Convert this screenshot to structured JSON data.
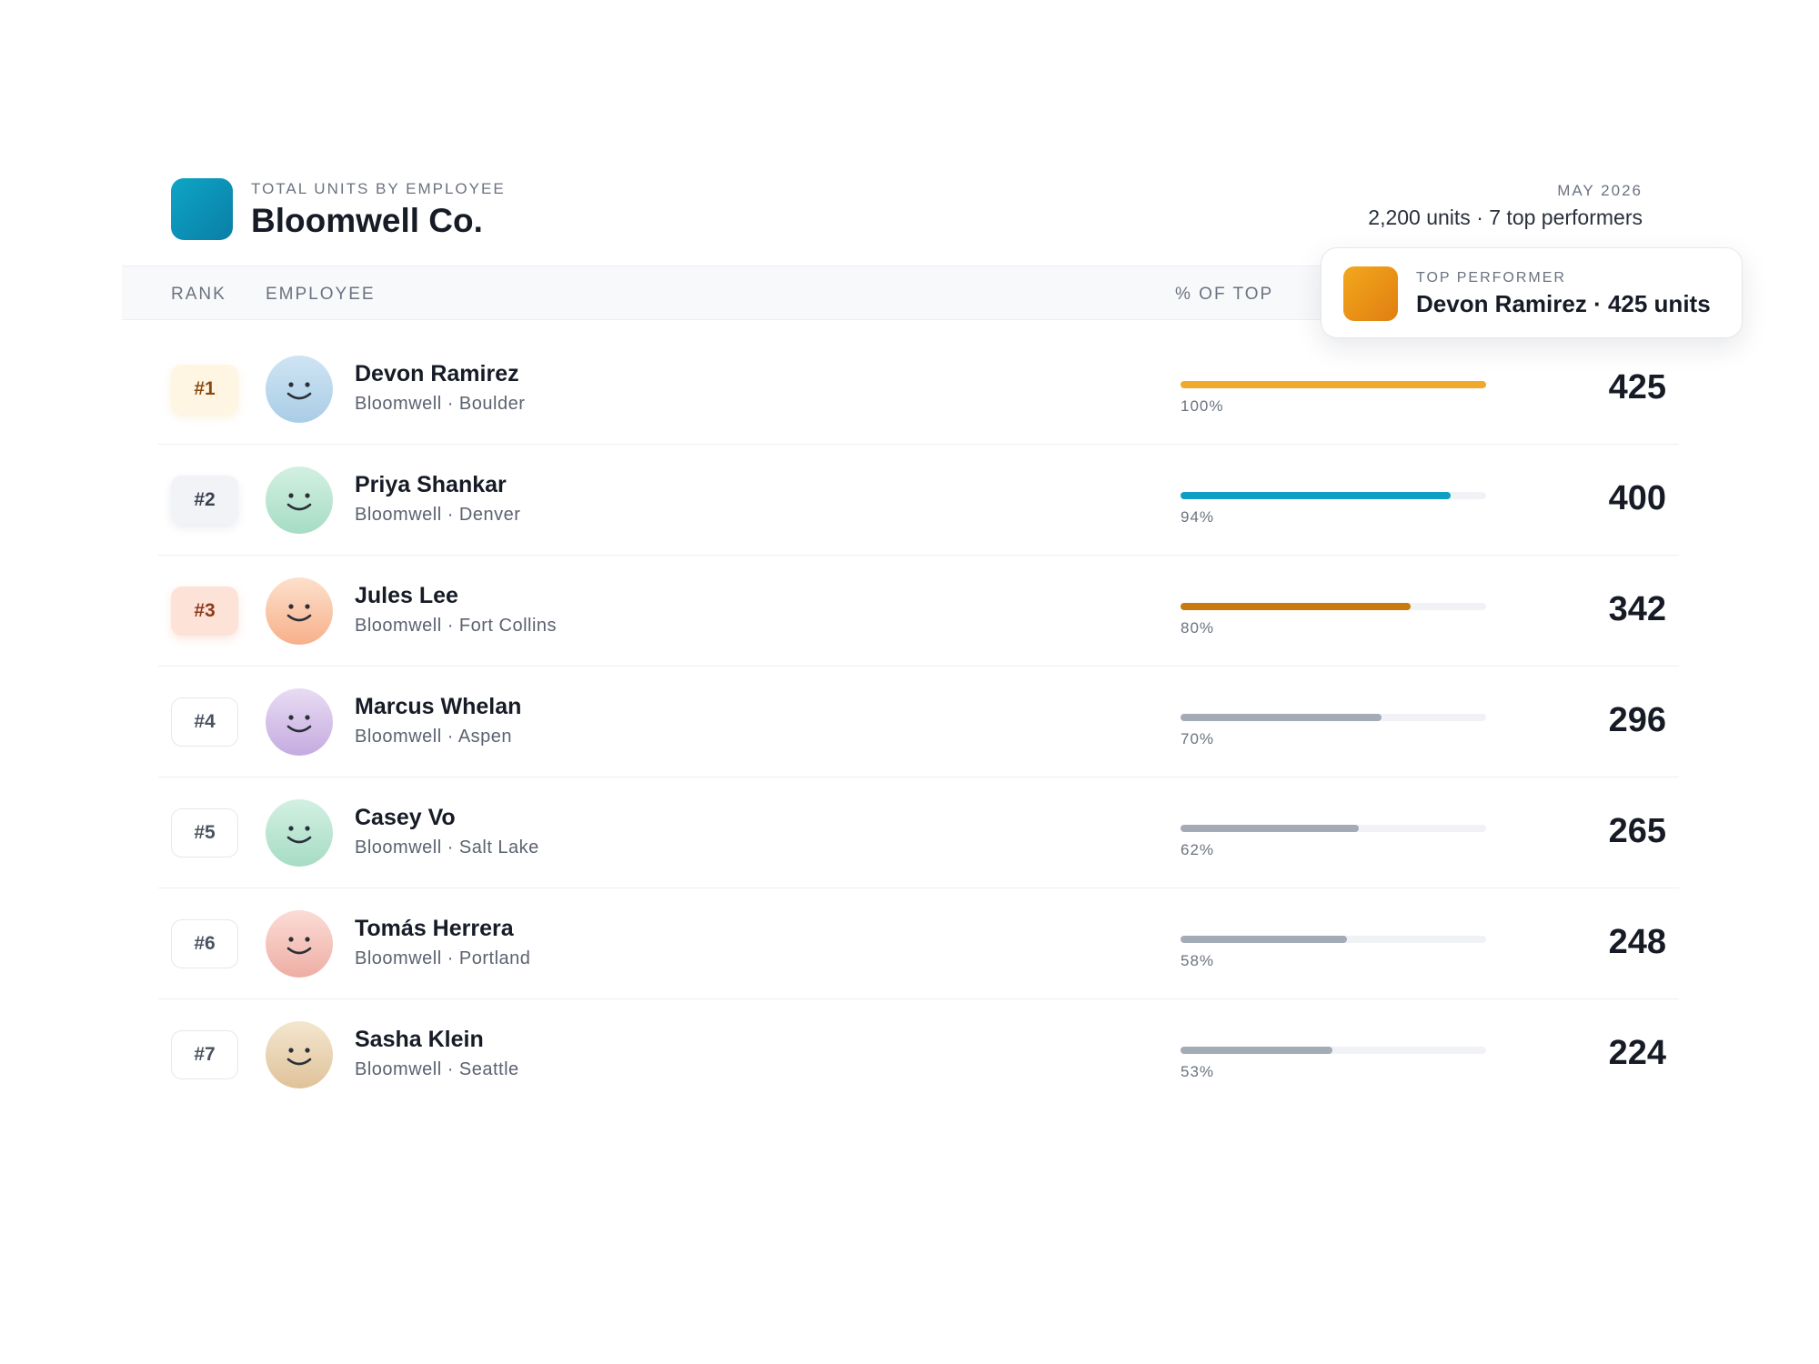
{
  "header": {
    "eyebrow": "TOTAL UNITS BY EMPLOYEE",
    "title": "Bloomwell Co.",
    "month": "MAY 2026",
    "summary": "2,200 units · 7 top performers"
  },
  "columns": {
    "rank": "RANK",
    "employee": "EMPLOYEE",
    "percent": "% OF TOP"
  },
  "tooltip": {
    "label": "TOP PERFORMER",
    "text": "Devon Ramirez · 425 units"
  },
  "colors": {
    "accent": "#0ea5c6",
    "gold": "#f0a92a",
    "teal": "#0f9fc4",
    "bronze": "#c97a0f",
    "neutral": "#a3abb7"
  },
  "rows": [
    {
      "rank": "#1",
      "name": "Devon Ramirez",
      "location": "Bloomwell · Boulder",
      "pct_label": "100%",
      "pct": 1.0,
      "units": "425",
      "bar_color": "#f0a92a",
      "badge": "gold",
      "avatar": [
        "#cfe4f3",
        "#a9cde6"
      ]
    },
    {
      "rank": "#2",
      "name": "Priya Shankar",
      "location": "Bloomwell · Denver",
      "pct_label": "94%",
      "pct": 0.94,
      "units": "400",
      "bar_color": "#0f9fc4",
      "badge": "silver",
      "avatar": [
        "#d3f0e2",
        "#a6dcc4"
      ]
    },
    {
      "rank": "#3",
      "name": "Jules Lee",
      "location": "Bloomwell · Fort Collins",
      "pct_label": "80%",
      "pct": 0.8,
      "units": "342",
      "bar_color": "#c97a0f",
      "badge": "bronze",
      "avatar": [
        "#fde0cc",
        "#f7b08a"
      ]
    },
    {
      "rank": "#4",
      "name": "Marcus Whelan",
      "location": "Bloomwell · Aspen",
      "pct_label": "70%",
      "pct": 0.7,
      "units": "296",
      "bar_color": "#a3abb7",
      "badge": "plain",
      "avatar": [
        "#e8dcf3",
        "#c5abe0"
      ]
    },
    {
      "rank": "#5",
      "name": "Casey Vo",
      "location": "Bloomwell · Salt Lake",
      "pct_label": "62%",
      "pct": 0.62,
      "units": "265",
      "bar_color": "#a3abb7",
      "badge": "plain",
      "avatar": [
        "#d3f0e2",
        "#a6dcc4"
      ]
    },
    {
      "rank": "#6",
      "name": "Tomás Herrera",
      "location": "Bloomwell · Portland",
      "pct_label": "58%",
      "pct": 0.58,
      "units": "248",
      "bar_color": "#a3abb7",
      "badge": "plain",
      "avatar": [
        "#fbdcd6",
        "#eeaea4"
      ]
    },
    {
      "rank": "#7",
      "name": "Sasha Klein",
      "location": "Bloomwell · Seattle",
      "pct_label": "53%",
      "pct": 0.53,
      "units": "224",
      "bar_color": "#a3abb7",
      "badge": "plain",
      "avatar": [
        "#f4e6cf",
        "#dfc29a"
      ]
    }
  ]
}
